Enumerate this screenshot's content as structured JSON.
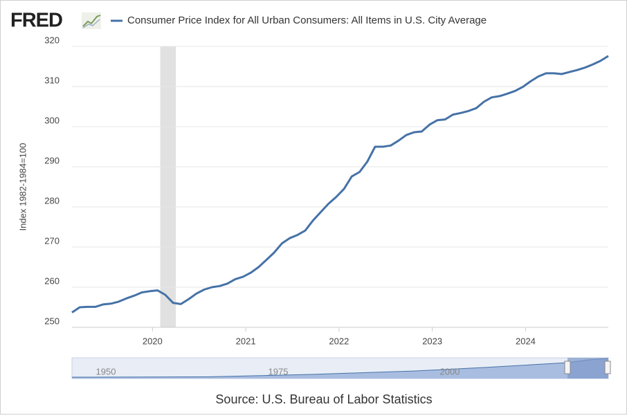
{
  "brand": "FRED",
  "source": "Source: U.S. Bureau of Labor Statistics",
  "navigator": {
    "ticks": [
      "1950",
      "1975",
      "2000"
    ]
  },
  "chart_data": {
    "type": "line",
    "series": [
      {
        "name": "Consumer Price Index for All Urban Consumers: All Items in U.S. City Average",
        "color": "#4572a7",
        "values": [
          253.7,
          255.0,
          255.1,
          255.1,
          255.7,
          255.9,
          256.4,
          257.2,
          257.9,
          258.7,
          259.0,
          259.2,
          258.1,
          256.1,
          255.8,
          257.0,
          258.4,
          259.4,
          260.0,
          260.3,
          260.9,
          262.0,
          262.6,
          263.6,
          265.0,
          266.8,
          268.6,
          270.9,
          272.2,
          273.0,
          274.1,
          276.6,
          278.7,
          280.8,
          282.5,
          284.5,
          287.6,
          288.7,
          291.3,
          295.0,
          295.0,
          295.3,
          296.5,
          297.9,
          298.6,
          298.8,
          300.5,
          301.6,
          301.8,
          303.0,
          303.4,
          303.9,
          304.6,
          306.2,
          307.3,
          307.6,
          308.2,
          308.9,
          309.9,
          311.3,
          312.5,
          313.3,
          313.3,
          313.1,
          313.6,
          314.1,
          314.7,
          315.5,
          316.4,
          317.6
        ]
      }
    ],
    "x": [
      "2019-03",
      "2019-04",
      "2019-05",
      "2019-06",
      "2019-07",
      "2019-08",
      "2019-09",
      "2019-10",
      "2019-11",
      "2019-12",
      "2020-01",
      "2020-02",
      "2020-03",
      "2020-04",
      "2020-05",
      "2020-06",
      "2020-07",
      "2020-08",
      "2020-09",
      "2020-10",
      "2020-11",
      "2020-12",
      "2021-01",
      "2021-02",
      "2021-03",
      "2021-04",
      "2021-05",
      "2021-06",
      "2021-07",
      "2021-08",
      "2021-09",
      "2021-10",
      "2021-11",
      "2021-12",
      "2022-01",
      "2022-02",
      "2022-03",
      "2022-04",
      "2022-05",
      "2022-06",
      "2022-07",
      "2022-08",
      "2022-09",
      "2022-10",
      "2022-11",
      "2022-12",
      "2023-01",
      "2023-02",
      "2023-03",
      "2023-04",
      "2023-05",
      "2023-06",
      "2023-07",
      "2023-08",
      "2023-09",
      "2023-10",
      "2023-11",
      "2023-12",
      "2024-01",
      "2024-02",
      "2024-03",
      "2024-04",
      "2024-05",
      "2024-06",
      "2024-07",
      "2024-08",
      "2024-09",
      "2024-10",
      "2024-11",
      "2024-12"
    ],
    "xlim": [
      "2019-03",
      "2024-12"
    ],
    "xticks": [
      "2020",
      "2021",
      "2022",
      "2023",
      "2024"
    ],
    "ylim": [
      250,
      320
    ],
    "yticks": [
      250,
      260,
      270,
      280,
      290,
      300,
      310,
      320
    ],
    "ylabel": "Index 1982-1984=100",
    "recessions": [
      {
        "start": "2020-02",
        "end": "2020-04"
      }
    ],
    "grid": true
  }
}
